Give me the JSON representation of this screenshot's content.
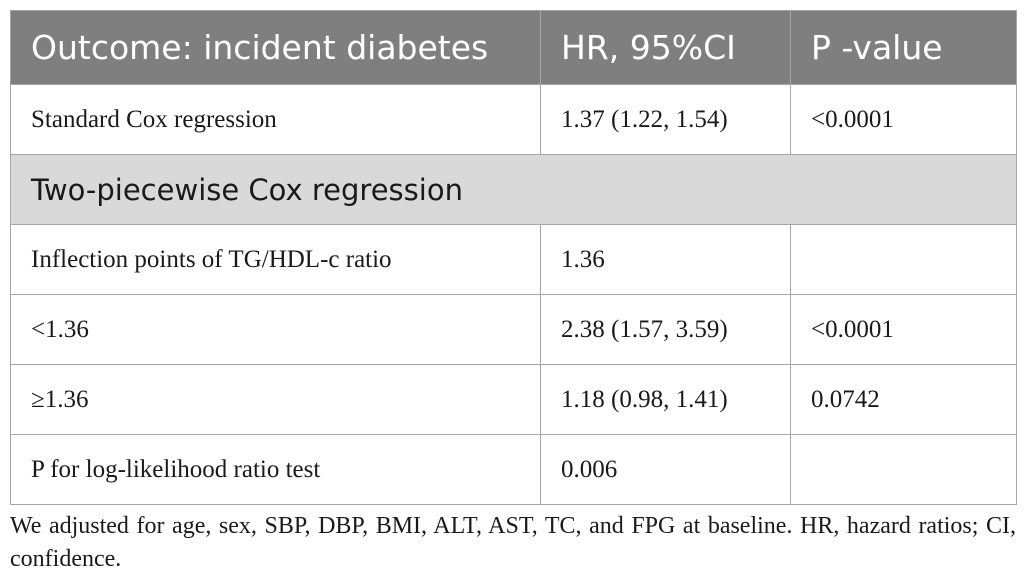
{
  "table": {
    "headers": [
      "Outcome: incident diabetes",
      "HR, 95%CI",
      "P -value"
    ],
    "rows": [
      {
        "label": "Standard Cox regression",
        "hr": "1.37 (1.22, 1.54)",
        "p": "<0.0001"
      },
      {
        "section": "Two-piecewise Cox regression"
      },
      {
        "label": "Inflection points of TG/HDL-c ratio",
        "hr": "1.36",
        "p": ""
      },
      {
        "label": "<1.36",
        "hr": "2.38 (1.57, 3.59)",
        "p": "<0.0001"
      },
      {
        "label": "≥1.36",
        "hr": "1.18 (0.98, 1.41)",
        "p": "0.0742"
      },
      {
        "label": "P for log-likelihood ratio test",
        "hr": "0.006",
        "p": ""
      }
    ]
  },
  "footnote": "We adjusted for age, sex, SBP, DBP, BMI, ALT, AST, TC, and FPG at baseline. HR, hazard ratios; CI, confidence."
}
